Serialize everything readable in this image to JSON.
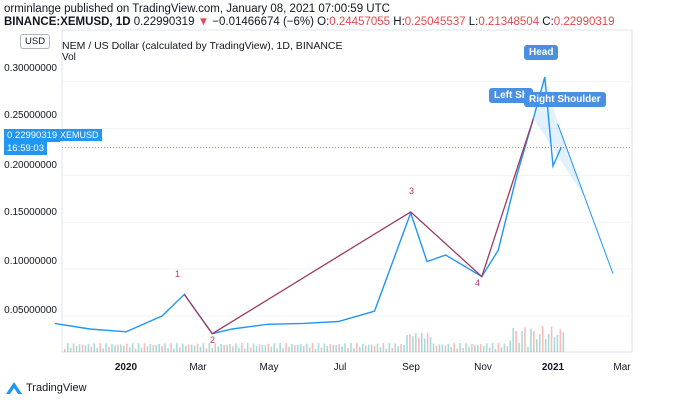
{
  "header": {
    "publisher_line": "orminlange published on TradingView.com, January 08, 2021 07:00:59 UTC",
    "symbol": "BINANCE:XEMUSD, 1D",
    "last": "0.22990319",
    "change_arrow": "▼",
    "change": "−0.01466674 (−6%)",
    "o_label": "O:",
    "o": "0.24457055",
    "h_label": "H:",
    "h": "0.25045537",
    "l_label": "L:",
    "l": "0.21348504",
    "c_label": "C:",
    "c": "0.22990319"
  },
  "chart": {
    "title": "NEM / US Dollar (calculated by TradingView), 1D, BINANCE",
    "vol_label": "Vol",
    "currency_button": "USD",
    "price_tag": "0.22990319",
    "time_tag": "16:59:03",
    "symbol_tag": "XEMUSD",
    "y_ticks": [
      "0.30000000",
      "0.25000000",
      "0.20000000",
      "0.15000000",
      "0.10000000",
      "0.05000000"
    ],
    "x_ticks": [
      "2020",
      "Mar",
      "May",
      "Jul",
      "Sep",
      "Nov",
      "2021",
      "Mar"
    ],
    "point_labels": [
      "1",
      "2",
      "3",
      "4"
    ],
    "pattern_labels": {
      "head": "Head",
      "left": "Left Sh",
      "right": "Right Shoulder"
    }
  },
  "footer": {
    "brand": "TradingView"
  },
  "colors": {
    "line": "#2196f3",
    "zigzag": "#9c3a62",
    "up": "#26a69a",
    "down": "#ef5350",
    "label_bg": "#4a90e2"
  },
  "chart_data": {
    "type": "line",
    "title": "NEM / US Dollar (calculated by TradingView), 1D, BINANCE",
    "x": [
      "2019-11",
      "2019-12",
      "2020-01",
      "2020-02",
      "2020-02-20",
      "2020-03-15",
      "2020-04",
      "2020-05",
      "2020-06",
      "2020-07",
      "2020-08",
      "2020-09-01",
      "2020-09-15",
      "2020-10",
      "2020-11-01",
      "2020-11-15",
      "2020-12-01",
      "2020-12-15",
      "2020-12-25",
      "2021-01-01",
      "2021-01-08"
    ],
    "series": [
      {
        "values": [
          0.042,
          0.036,
          0.033,
          0.05,
          0.073,
          0.031,
          0.036,
          0.041,
          0.042,
          0.044,
          0.055,
          0.16,
          0.108,
          0.115,
          0.092,
          0.12,
          0.2,
          0.26,
          0.305,
          0.21,
          0.2299
        ]
      }
    ],
    "zigzag": [
      {
        "label": "1",
        "x": "2020-02-20",
        "y": 0.073
      },
      {
        "label": "2",
        "x": "2020-03-15",
        "y": 0.031
      },
      {
        "label": "3",
        "x": "2020-09-01",
        "y": 0.161
      },
      {
        "label": "4",
        "x": "2020-11-01",
        "y": 0.092
      }
    ],
    "ylim": [
      0.02,
      0.32
    ],
    "y_ticks": [
      0.3,
      0.25,
      0.2,
      0.15,
      0.1,
      0.05
    ]
  }
}
